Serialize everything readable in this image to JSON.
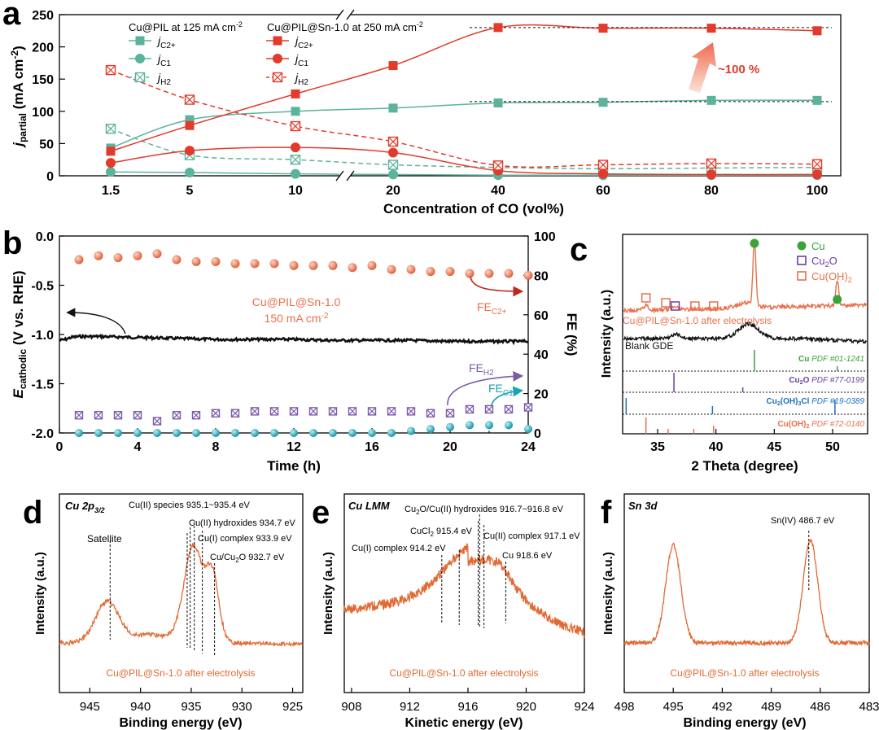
{
  "colors": {
    "green": "#5bb39c",
    "red": "#e23a2b",
    "orange": "#e8704c",
    "purple": "#7b5ca8",
    "teal": "#1aa3b5",
    "black": "#111111",
    "xps": "#e06a34"
  },
  "chart_data": [
    {
      "panel": "a",
      "type": "line",
      "xlabel": "Concentration of CO (vol%)",
      "ylabel": "j_partial (mA cm^-2)",
      "ylabel_main": "j",
      "ylabel_sub": "partial",
      "ylabel_unit": " (mA cm",
      "ylabel_exp": "-2",
      "ylabel_close": ")",
      "ylim": [
        0,
        250
      ],
      "yticks": [
        "0",
        "50",
        "100",
        "150",
        "200",
        "250"
      ],
      "categories": [
        "1.5",
        "5",
        "10",
        "20",
        "40",
        "60",
        "80",
        "100"
      ],
      "legend_title_1": "Cu@PIL at 125 mA cm",
      "legend_title_2": "Cu@PIL@Sn-1.0 at 250 mA cm",
      "legend_exp": "-2",
      "legend_j": "j",
      "annotation": "~100 %",
      "series": [
        {
          "name": "C2+",
          "material": "Cu@PIL",
          "values": [
            43,
            87,
            100,
            105,
            113,
            114,
            117,
            117
          ]
        },
        {
          "name": "C1",
          "material": "Cu@PIL",
          "values": [
            6,
            5,
            3,
            2,
            1,
            1,
            1,
            1
          ]
        },
        {
          "name": "H2",
          "material": "Cu@PIL",
          "values": [
            73,
            32,
            25,
            17,
            13,
            11,
            12,
            13
          ]
        },
        {
          "name": "C2+",
          "material": "Cu@PIL@Sn-1.0",
          "values": [
            38,
            78,
            127,
            171,
            230,
            229,
            229,
            225
          ]
        },
        {
          "name": "C1",
          "material": "Cu@PIL@Sn-1.0",
          "values": [
            20,
            39,
            44,
            36,
            8,
            3,
            2,
            2
          ]
        },
        {
          "name": "H2",
          "material": "Cu@PIL@Sn-1.0",
          "values": [
            164,
            118,
            77,
            53,
            16,
            17,
            19,
            18
          ]
        }
      ]
    },
    {
      "panel": "b",
      "type": "line",
      "xlabel": "Time (h)",
      "ylabel_left_main": "E",
      "ylabel_left_sub": "cathodic",
      "ylabel_left_rest": " (V vs. RHE)",
      "ylabel_right": "FE (%)",
      "xlim": [
        0,
        24
      ],
      "ylim_left": [
        -2.0,
        0.0
      ],
      "ylim_right": [
        0,
        100
      ],
      "xticks": [
        "0",
        "4",
        "8",
        "12",
        "16",
        "20",
        "24"
      ],
      "yticks_left": [
        "0.0",
        "-0.5",
        "-1.0",
        "-1.5",
        "-2.0"
      ],
      "yticks_right": [
        "0",
        "20",
        "40",
        "60",
        "80",
        "100"
      ],
      "sample_label": "Cu@PIL@Sn-1.0",
      "current_label": "150 mA cm",
      "current_exp": "-2",
      "potential": {
        "t": [
          0,
          0.3,
          0.6,
          1,
          2,
          4,
          6,
          8,
          10,
          12,
          14,
          16,
          18,
          20,
          22,
          24
        ],
        "E": [
          -1.06,
          -1.05,
          -1.03,
          -1.02,
          -1.02,
          -1.03,
          -1.04,
          -1.05,
          -1.05,
          -1.05,
          -1.06,
          -1.06,
          -1.06,
          -1.07,
          -1.07,
          -1.07
        ]
      },
      "time_points": [
        1,
        2,
        3,
        4,
        5,
        6,
        7,
        8,
        9,
        10,
        11,
        12,
        13,
        14,
        15,
        16,
        17,
        18,
        19,
        20,
        21,
        22,
        23,
        24
      ],
      "series": [
        {
          "name": "FE_C2+",
          "label_main": "FE",
          "label_sub": "C2+",
          "values": [
            88,
            90,
            89,
            90,
            91,
            88,
            87,
            87,
            86,
            86,
            86,
            85,
            85,
            85,
            84,
            85,
            83,
            83,
            82,
            82,
            81,
            81,
            81,
            80
          ]
        },
        {
          "name": "FE_H2",
          "label_main": "FE",
          "label_sub": "H2",
          "values": [
            9,
            9,
            9,
            9,
            6,
            9,
            9,
            10,
            10,
            11,
            11,
            11,
            11,
            11,
            11,
            11,
            11,
            11,
            10,
            10,
            12,
            12,
            12,
            13
          ]
        },
        {
          "name": "FE_C1",
          "label_main": "FE",
          "label_sub": "C1",
          "values": [
            0,
            0,
            0,
            0,
            0,
            0,
            0,
            0,
            0,
            0,
            0,
            0,
            0,
            0,
            0,
            0,
            0,
            1,
            2,
            3,
            4,
            4,
            4,
            2
          ]
        }
      ]
    },
    {
      "panel": "c",
      "type": "line",
      "xlabel": "2 Theta (degree)",
      "ylabel": "Intensity (a.u.)",
      "xlim": [
        32,
        53
      ],
      "xticks": [
        "35",
        "40",
        "45",
        "50"
      ],
      "trace_1_label": "Cu@PIL@Sn-1.0 after electrolysis",
      "trace_2_label": "Blank GDE",
      "legend": [
        "Cu",
        "Cu",
        "Cu(OH)"
      ],
      "legend_cu2o_a": "Cu",
      "legend_cu2o_sub": "2",
      "legend_cu2o_b": "O",
      "legend_cuoh_a": "Cu(OH)",
      "legend_cuoh_sub": "2",
      "references": [
        {
          "phase": "Cu",
          "pdf": "PDF #01-1241",
          "lines": [
            43.3,
            50.4
          ]
        },
        {
          "phase": "Cu2O",
          "pdf": "PDF #77-0199",
          "lines": [
            36.4,
            42.3
          ]
        },
        {
          "phase": "Cu2(OH)3Cl",
          "pdf": "PDF #19-0389",
          "lines": [
            32.3,
            39.7,
            50.2
          ]
        },
        {
          "phase": "Cu(OH)2",
          "pdf": "PDF #72-0140",
          "lines": [
            34.0,
            35.9,
            38.1,
            39.8
          ]
        }
      ],
      "ref_phase_1": "Cu",
      "ref_phase_2_a": "Cu",
      "ref_phase_2_sub": "2",
      "ref_phase_2_b": "O",
      "ref_phase_3_a": "Cu",
      "ref_phase_3_sub": "2",
      "ref_phase_3_b": "(OH)",
      "ref_phase_3_sub2": "3",
      "ref_phase_3_c": "Cl",
      "ref_phase_4_a": "Cu(OH)",
      "ref_phase_4_sub": "2",
      "peaks": {
        "Cu": [
          43.3,
          50.4
        ],
        "Cu(OH)2": [
          34.0,
          35.7,
          38.2,
          39.8
        ],
        "Cu2O": [
          36.5
        ]
      }
    },
    {
      "panel": "d",
      "type": "line",
      "title_a": "Cu 2p",
      "title_sub": "3/2",
      "xlabel": "Binding energy (eV)",
      "ylabel": "Intensity (a.u.)",
      "xlim": [
        948,
        924
      ],
      "xticks": [
        "945",
        "940",
        "935",
        "930",
        "925"
      ],
      "sample_label": "Cu@PIL@Sn-1.0 after electrolysis",
      "ann_satellite": "Satellite",
      "ann_1": "Cu(II) species 935.1~935.4 eV",
      "ann_2": "Cu(II) hydroxides 934.7 eV",
      "ann_3": "Cu(I) complex 933.9 eV",
      "ann_4_a": "Cu/Cu",
      "ann_4_sub": "2",
      "ann_4_b": "O 932.7 eV",
      "markers": [
        943.0,
        935.4,
        935.1,
        934.7,
        933.9,
        932.7
      ]
    },
    {
      "panel": "e",
      "type": "line",
      "title": "Cu LMM",
      "xlabel": "Kinetic energy (eV)",
      "ylabel": "Intensity (a.u.)",
      "xlim": [
        907.5,
        924
      ],
      "xticks": [
        "908",
        "912",
        "916",
        "920",
        "924"
      ],
      "sample_label": "Cu@PIL@Sn-1.0 after electrolysis",
      "ann_1_a": "Cu",
      "ann_1_sub": "2",
      "ann_1_b": "O/Cu(II) hydroxides 916.7~916.8 eV",
      "ann_2_a": "CuCl",
      "ann_2_sub": "2",
      "ann_2_b": " 915.4 eV",
      "ann_3": "Cu(I) complex 914.2 eV",
      "ann_4": "Cu(II) complex 917.1 eV",
      "ann_5": "Cu 918.6 eV",
      "markers": [
        914.2,
        915.4,
        916.7,
        916.8,
        917.1,
        918.6
      ]
    },
    {
      "panel": "f",
      "type": "line",
      "title": "Sn 3d",
      "xlabel": "Binding energy (eV)",
      "ylabel": "Intensity (a.u.)",
      "xlim": [
        498,
        483
      ],
      "xticks": [
        "498",
        "495",
        "492",
        "489",
        "486",
        "483"
      ],
      "sample_label": "Cu@PIL@Sn-1.0 after electrolysis",
      "ann_1": "Sn(IV) 486.7 eV",
      "markers": [
        486.7
      ]
    }
  ],
  "panel_labels": [
    "a",
    "b",
    "c",
    "d",
    "e",
    "f"
  ]
}
